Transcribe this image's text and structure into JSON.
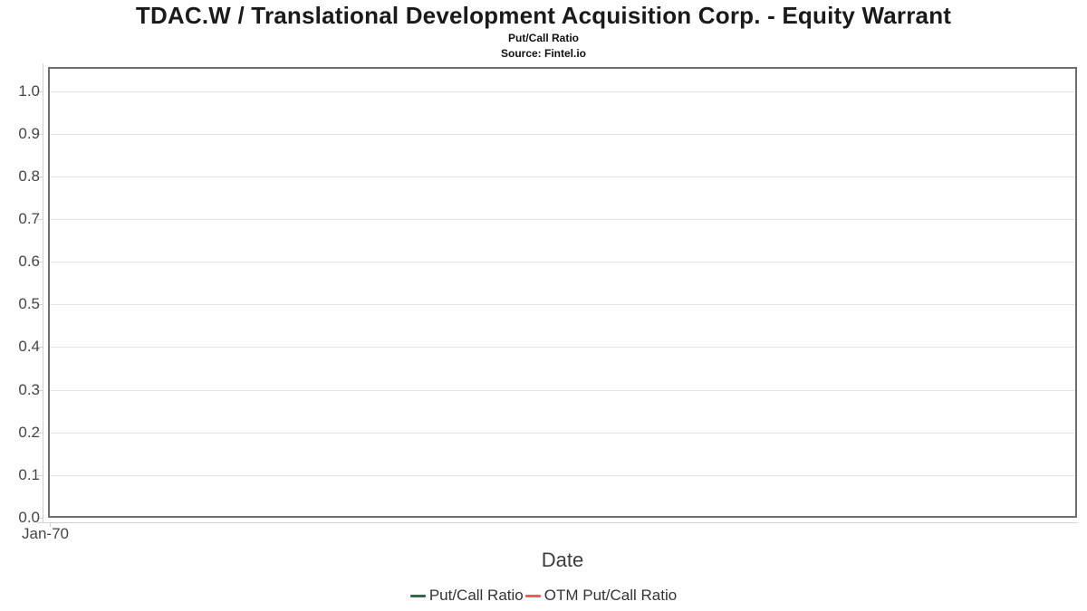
{
  "header": {
    "title": "TDAC.W / Translational Development Acquisition Corp. - Equity Warrant",
    "subtitle": "Put/Call Ratio",
    "source": "Source: Fintel.io"
  },
  "chart_data": {
    "type": "line",
    "title": "TDAC.W / Translational Development Acquisition Corp. - Equity Warrant",
    "subtitle": "Put/Call Ratio",
    "source": "Source: Fintel.io",
    "xlabel": "Date",
    "ylabel": "",
    "ylim": [
      0.0,
      1.056
    ],
    "y_tick_labels": [
      "0.0",
      "0.1",
      "0.2",
      "0.3",
      "0.4",
      "0.5",
      "0.6",
      "0.7",
      "0.8",
      "0.9",
      "1.0"
    ],
    "x_tick_labels": [
      "Jan-70"
    ],
    "grid": true,
    "legend_position": "bottom",
    "series": [
      {
        "name": "Put/Call Ratio",
        "color": "#2f6b4a",
        "x": [],
        "values": []
      },
      {
        "name": "OTM Put/Call Ratio",
        "color": "#ef5c5c",
        "x": [],
        "values": []
      }
    ]
  },
  "colors": {
    "plot_border": "#6e6e6e",
    "gridline": "#e4e4e4",
    "axis_line": "#ccd3da",
    "tick_label": "#454545",
    "series_green": "#2f6b4a",
    "series_red": "#ef5c5c"
  }
}
